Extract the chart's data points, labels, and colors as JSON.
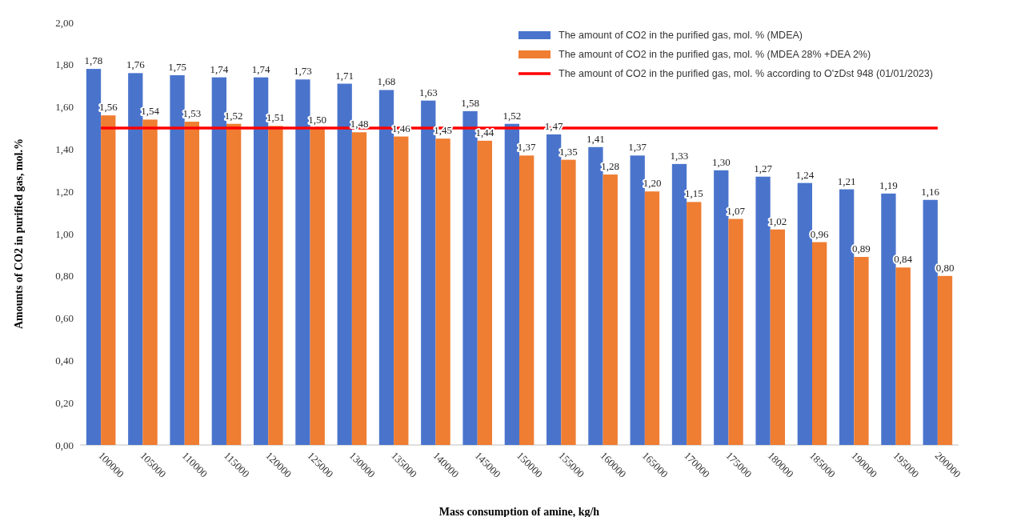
{
  "chart_data": {
    "type": "bar",
    "xlabel": "Mass consumption of amine, kg/h",
    "ylabel": "Amounts of CO2 in purified gas, mol.%",
    "categories": [
      "100000",
      "105000",
      "110000",
      "115000",
      "120000",
      "125000",
      "130000",
      "135000",
      "140000",
      "145000",
      "150000",
      "155000",
      "160000",
      "165000",
      "170000",
      "175000",
      "180000",
      "185000",
      "190000",
      "195000",
      "200000"
    ],
    "series": [
      {
        "name": "The amount of CO2 in the purified gas, mol. % (MDEA)",
        "color": "#4a74cc",
        "values": [
          1.78,
          1.76,
          1.75,
          1.74,
          1.74,
          1.73,
          1.71,
          1.68,
          1.63,
          1.58,
          1.52,
          1.47,
          1.41,
          1.37,
          1.33,
          1.3,
          1.27,
          1.24,
          1.21,
          1.19,
          1.16
        ],
        "value_labels": [
          "1,78",
          "1,76",
          "1,75",
          "1,74",
          "1,74",
          "1,73",
          "1,71",
          "1,68",
          "1,63",
          "1,58",
          "1,52",
          "1,47",
          "1,41",
          "1,37",
          "1,33",
          "1,30",
          "1,27",
          "1,24",
          "1,21",
          "1,19",
          "1,16"
        ]
      },
      {
        "name": "The amount of CO2 in the purified gas, mol. % (MDEA 28% +DEA 2%)",
        "color": "#ef7d32",
        "values": [
          1.56,
          1.54,
          1.53,
          1.52,
          1.51,
          1.5,
          1.48,
          1.46,
          1.45,
          1.44,
          1.37,
          1.35,
          1.28,
          1.2,
          1.15,
          1.07,
          1.02,
          0.96,
          0.89,
          0.84,
          0.8
        ],
        "value_labels": [
          "1,56",
          "1,54",
          "1,53",
          "1,52",
          "1,51",
          "1,50",
          "1,48",
          "1,46",
          "1,45",
          "1,44",
          "1,37",
          "1,35",
          "1,28",
          "1,20",
          "1,15",
          "1,07",
          "1,02",
          "0,96",
          "0,89",
          "0,84",
          "0,80"
        ]
      },
      {
        "name": "The amount of CO2 in the purified gas, mol. % according to O'zDst 948 (01/01/2023)",
        "type": "line",
        "color": "#ff0000",
        "values": [
          1.5,
          1.5,
          1.5,
          1.5,
          1.5,
          1.5,
          1.5,
          1.5,
          1.5,
          1.5,
          1.5,
          1.5,
          1.5,
          1.5,
          1.5,
          1.5,
          1.5,
          1.5,
          1.5,
          1.5,
          1.5
        ]
      }
    ],
    "ylim": [
      0,
      2
    ],
    "yticks": [
      {
        "value": 0,
        "label": "0,00"
      },
      {
        "value": 0.2,
        "label": "0,20"
      },
      {
        "value": 0.4,
        "label": "0,40"
      },
      {
        "value": 0.6,
        "label": "0,60"
      },
      {
        "value": 0.8,
        "label": "0,80"
      },
      {
        "value": 1,
        "label": "1,00"
      },
      {
        "value": 1.2,
        "label": "1,20"
      },
      {
        "value": 1.4,
        "label": "1,40"
      },
      {
        "value": 1.6,
        "label": "1,60"
      },
      {
        "value": 1.8,
        "label": "1,80"
      },
      {
        "value": 2,
        "label": "2,00"
      }
    ],
    "legend": "top right"
  }
}
